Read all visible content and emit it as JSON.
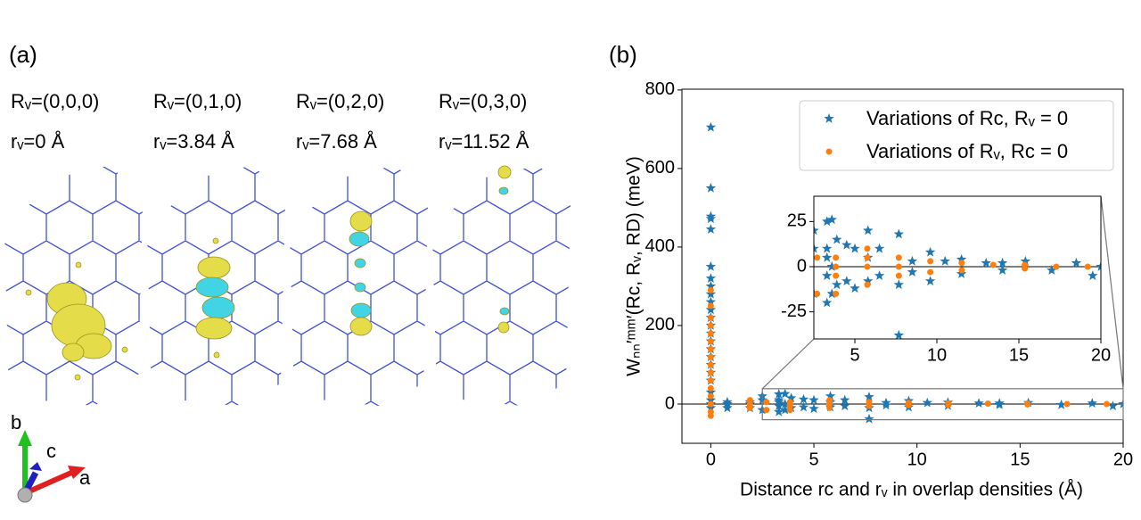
{
  "panel_a": {
    "label": "(a)",
    "columns": [
      {
        "R": "Rᵥ=(0,0,0)",
        "r": "rᵥ=0 Å"
      },
      {
        "R": "Rᵥ=(0,1,0)",
        "r": "rᵥ=3.84 Å"
      },
      {
        "R": "Rᵥ=(0,2,0)",
        "r": "rᵥ=7.68 Å"
      },
      {
        "R": "Rᵥ=(0,3,0)",
        "r": "rᵥ=11.52 Å"
      }
    ],
    "axes": {
      "b": "b",
      "c": "c",
      "a": "a"
    }
  },
  "chart_data": {
    "type": "scatter",
    "label": "(b)",
    "x_label": "Distance rc and rᵥ in overlap densities (Å)",
    "y_label": "Wₙₙ′ᵐᵐ′(Rc, Rᵥ, RD) (meV)",
    "xlim": [
      -1.4,
      20
    ],
    "ylim": [
      -100,
      802
    ],
    "xticks": [
      0,
      5,
      10,
      15,
      20
    ],
    "yticks": [
      0,
      200,
      400,
      600,
      800
    ],
    "hlines": [
      0
    ],
    "legend": "upper right",
    "series": [
      {
        "name": "Variations of Rc, Rᵥ = 0",
        "color": "#1f77b4",
        "marker": "star",
        "x": [
          0,
          0,
          0,
          0,
          0,
          0,
          0,
          0,
          0,
          0,
          0,
          0,
          0,
          0,
          0,
          0,
          0,
          0,
          0,
          0,
          0,
          0,
          0,
          0,
          0.8,
          0.8,
          0.8,
          1.9,
          1.9,
          1.9,
          2.5,
          2.5,
          2.5,
          3.3,
          3.3,
          3.3,
          3.3,
          3.3,
          3.6,
          3.6,
          3.6,
          3.9,
          3.9,
          4.5,
          4.5,
          5,
          5,
          5.8,
          5.8,
          5.8,
          6.5,
          6.5,
          7.68,
          7.68,
          7.68,
          8.5,
          8.5,
          9.6,
          9.6,
          10.5,
          11.5,
          11.5,
          13,
          14,
          14,
          15.4,
          17,
          18.5,
          19.5,
          20
        ],
        "values": [
          705,
          550,
          478,
          472,
          445,
          350,
          320,
          300,
          280,
          260,
          240,
          220,
          200,
          180,
          160,
          140,
          120,
          100,
          80,
          60,
          30,
          10,
          0,
          -10,
          0,
          -10,
          5,
          5,
          -10,
          0,
          20,
          -15,
          10,
          25,
          -20,
          10,
          5,
          -5,
          26,
          -15,
          0,
          15,
          -10,
          12,
          -8,
          10,
          -12,
          20,
          -8,
          5,
          10,
          -5,
          18,
          -38,
          -10,
          3,
          -3,
          8,
          -8,
          3,
          4,
          -4,
          2,
          2,
          -2,
          3,
          -2,
          2,
          -5,
          0
        ]
      },
      {
        "name": "Variations of Rᵥ, Rc = 0",
        "color": "#ff7f0e",
        "marker": "circle",
        "x": [
          0,
          0,
          0,
          0,
          0,
          0,
          0,
          0,
          0,
          0,
          0,
          0,
          0,
          0,
          0,
          0,
          1.9,
          1.9,
          1.9,
          2.7,
          2.7,
          3.84,
          3.84,
          3.84,
          3.84,
          5.76,
          5.76,
          5.76,
          5.76,
          7.68,
          7.68,
          7.68,
          9.6,
          9.6,
          11.52,
          11.52,
          13.44,
          15.36,
          15.36,
          17.28,
          19.2
        ],
        "values": [
          290,
          250,
          220,
          200,
          180,
          160,
          140,
          120,
          100,
          80,
          60,
          40,
          20,
          0,
          -20,
          -30,
          10,
          -10,
          0,
          5,
          -15,
          5,
          -15,
          -5,
          0,
          10,
          -10,
          0,
          5,
          5,
          -5,
          0,
          3,
          -3,
          2,
          -2,
          1,
          1,
          -1,
          0,
          0
        ]
      }
    ],
    "inset": {
      "xlim": [
        2.5,
        20
      ],
      "ylim": [
        -40,
        39
      ],
      "xticks": [
        5,
        10,
        15,
        20
      ],
      "yticks": [
        -25,
        0,
        25
      ]
    }
  }
}
